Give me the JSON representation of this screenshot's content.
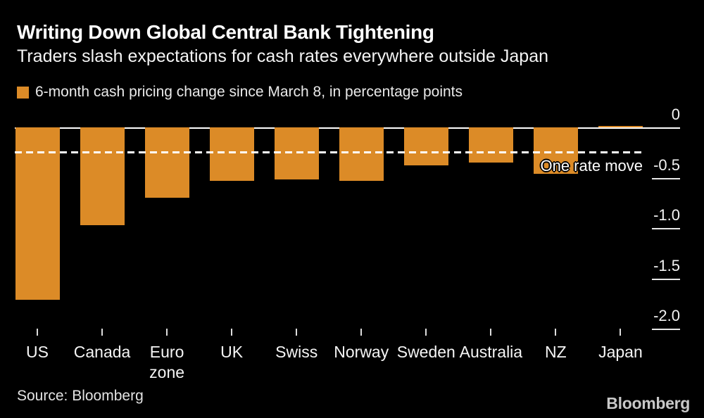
{
  "chart_data": {
    "type": "bar",
    "title": "Writing Down Global Central Bank Tightening",
    "subtitle": "Traders slash expectations for cash rates everywhere outside Japan",
    "legend": "6-month cash pricing change since March 8, in percentage points",
    "legend_position": "top-left",
    "unit": "percentage points",
    "categories": [
      "US",
      "Canada",
      "Euro zone",
      "UK",
      "Swiss",
      "Norway",
      "Sweden",
      "Australia",
      "NZ",
      "Japan"
    ],
    "categories_display": [
      "US",
      "Canada",
      "Euro\nzone",
      "UK",
      "Swiss",
      "Norway",
      "Sweden",
      "Australia",
      "NZ",
      "Japan"
    ],
    "values": [
      -1.71,
      -0.97,
      -0.7,
      -0.53,
      -0.52,
      -0.53,
      -0.38,
      -0.35,
      -0.46,
      0.01
    ],
    "ylim": [
      -2.0,
      0
    ],
    "yticks": [
      {
        "value": 0,
        "label": "0"
      },
      {
        "value": -0.5,
        "label": "-0.5"
      },
      {
        "value": -1.0,
        "label": "-1.0"
      },
      {
        "value": -1.5,
        "label": "-1.5"
      },
      {
        "value": -2.0,
        "label": "-2.0"
      }
    ],
    "reference_line": {
      "value": -0.25,
      "label": "One rate move",
      "style": "dashed"
    },
    "grid": false,
    "colors": {
      "bar": "#dc8b27",
      "background": "#000000",
      "axis": "#ffffff",
      "text": "#f2f2f2"
    }
  },
  "footer": {
    "source": "Source: Bloomberg",
    "logo": "Bloomberg"
  }
}
